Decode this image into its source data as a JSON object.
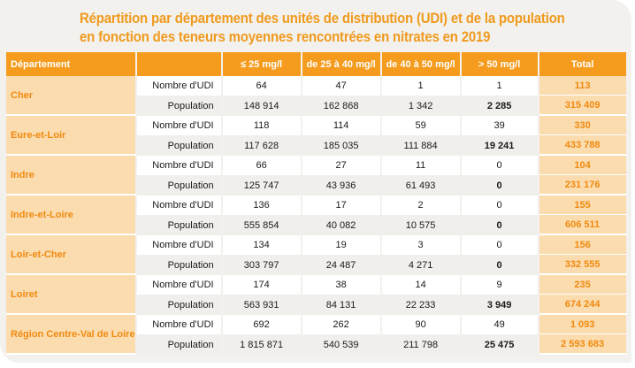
{
  "title_line1": "Répartition par département des unités de distribution (UDI) et de la population",
  "title_line2": "en fonction des teneurs moyennes rencontrées en nitrates en 2019",
  "headers": [
    "Département",
    "",
    "≤ 25 mg/l",
    "de 25 à 40 mg/l",
    "de 40 à 50 mg/l",
    "> 50 mg/l",
    "Total"
  ],
  "row_labels": {
    "udi": "Nombre d'UDI",
    "pop": "Population"
  },
  "rows": [
    {
      "dept": "Cher",
      "udi": [
        "64",
        "47",
        "1",
        "1",
        "113"
      ],
      "pop": [
        "148 914",
        "162 868",
        "1 342",
        "2 285",
        "315 409"
      ]
    },
    {
      "dept": "Eure-et-Loir",
      "udi": [
        "118",
        "114",
        "59",
        "39",
        "330"
      ],
      "pop": [
        "117 628",
        "185 035",
        "111 884",
        "19 241",
        "433 788"
      ]
    },
    {
      "dept": "Indre",
      "udi": [
        "66",
        "27",
        "11",
        "0",
        "104"
      ],
      "pop": [
        "125 747",
        "43 936",
        "61 493",
        "0",
        "231 176"
      ]
    },
    {
      "dept": "Indre-et-Loire",
      "udi": [
        "136",
        "17",
        "2",
        "0",
        "155"
      ],
      "pop": [
        "555 854",
        "40 082",
        "10 575",
        "0",
        "606 511"
      ]
    },
    {
      "dept": "Loir-et-Cher",
      "udi": [
        "134",
        "19",
        "3",
        "0",
        "156"
      ],
      "pop": [
        "303 797",
        "24 487",
        "4 271",
        "0",
        "332 555"
      ]
    },
    {
      "dept": "Loiret",
      "udi": [
        "174",
        "38",
        "14",
        "9",
        "235"
      ],
      "pop": [
        "563 931",
        "84 131",
        "22 233",
        "3 949",
        "674 244"
      ]
    },
    {
      "dept": "Région Centre-Val de Loire",
      "udi": [
        "692",
        "262",
        "90",
        "49",
        "1 093"
      ],
      "pop": [
        "1 815 871",
        "540 539",
        "211 798",
        "25 475",
        "2 593 683"
      ]
    }
  ]
}
